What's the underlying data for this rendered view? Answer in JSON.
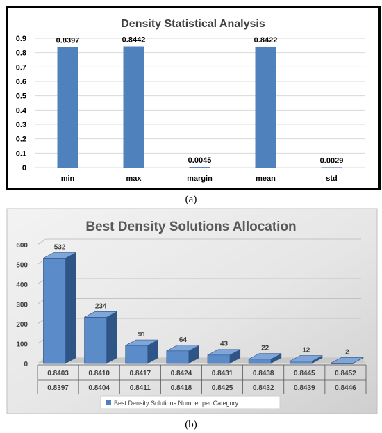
{
  "chart_data": [
    {
      "type": "bar",
      "title": "Density Statistical Analysis",
      "categories": [
        "min",
        "max",
        "margin",
        "mean",
        "std"
      ],
      "values": [
        0.8397,
        0.8442,
        0.0045,
        0.8422,
        0.0029
      ],
      "data_labels": [
        "0.8397",
        "0.8442",
        "0.0045",
        "0.8422",
        "0.0029"
      ],
      "yticks": [
        "0",
        "0.1",
        "0.2",
        "0.3",
        "0.4",
        "0.5",
        "0.6",
        "0.7",
        "0.8",
        "0.9"
      ],
      "ylim": [
        0,
        0.9
      ],
      "grid": true,
      "bar_color": "#4F81BD"
    },
    {
      "type": "bar",
      "title": "Best Density Solutions Allocation",
      "categories_upper": [
        "0.8403",
        "0.8410",
        "0.8417",
        "0.8424",
        "0.8431",
        "0.8438",
        "0.8445",
        "0.8452"
      ],
      "categories_lower": [
        "0.8397",
        "0.8404",
        "0.8411",
        "0.8418",
        "0.8425",
        "0.8432",
        "0.8439",
        "0.8446"
      ],
      "values": [
        532,
        234,
        91,
        64,
        43,
        22,
        12,
        2
      ],
      "data_labels": [
        "532",
        "234",
        "91",
        "64",
        "43",
        "22",
        "12",
        "2"
      ],
      "yticks": [
        "0",
        "100",
        "200",
        "300",
        "400",
        "500",
        "600"
      ],
      "ylim": [
        0,
        600
      ],
      "grid": true,
      "legend": "Best Density Solutions Number per Category",
      "legend_position": "bottom",
      "bar_color": "#4F81BD"
    }
  ],
  "captions": [
    "(a)",
    "(b)"
  ]
}
